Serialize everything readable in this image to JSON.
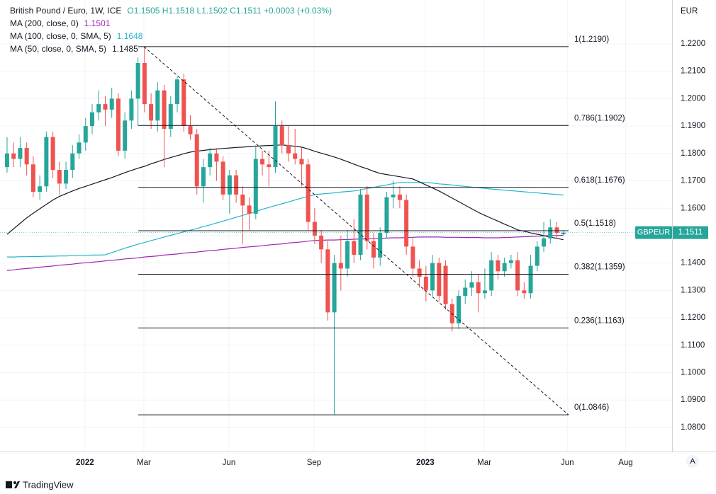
{
  "chart_data": {
    "type": "candlestick",
    "title": "British Pound / Euro, 1W, ICE",
    "ohlc_text": "O1.1505 H1.1518 L1.1502 C1.1511 +0.0003 (+0.03%)",
    "currency": "EUR",
    "symbol": "GBPEUR",
    "watermark": "TradingView",
    "scale_button": "A",
    "up_color": "#26a69a",
    "down_color": "#ef5350",
    "grid": true,
    "categories": [
      null,
      null,
      null,
      null,
      null,
      null,
      null,
      null,
      null,
      null,
      null,
      null,
      null,
      null,
      null,
      null,
      null,
      null,
      null,
      null,
      null,
      null,
      null,
      null,
      null,
      null,
      null,
      null,
      null,
      null,
      null,
      null,
      null,
      null,
      null,
      null,
      null,
      null,
      null,
      null,
      null,
      null,
      null,
      null,
      null,
      null,
      null,
      null,
      null,
      null,
      null,
      null,
      null,
      null,
      null,
      null,
      null,
      null,
      null,
      null,
      null,
      null,
      null,
      null,
      null,
      null,
      null,
      null,
      null,
      null,
      null,
      null,
      null,
      null,
      null,
      null,
      null,
      null,
      null,
      null,
      null,
      null,
      null,
      null,
      null,
      null
    ],
    "open": [
      1.175,
      1.18,
      1.178,
      1.182,
      1.176,
      1.166,
      1.168,
      1.186,
      1.174,
      1.169,
      1.174,
      1.18,
      1.184,
      1.19,
      1.195,
      1.198,
      1.196,
      1.2,
      1.181,
      1.192,
      1.2,
      1.213,
      1.198,
      1.192,
      1.203,
      1.189,
      1.198,
      1.207,
      1.19,
      1.187,
      1.168,
      1.175,
      1.18,
      1.177,
      1.165,
      1.172,
      1.165,
      1.161,
      1.158,
      1.178,
      1.176,
      1.175,
      1.19,
      1.183,
      1.18,
      1.178,
      1.176,
      1.155,
      1.15,
      1.145,
      1.122,
      1.14,
      1.138,
      1.148,
      1.143,
      1.165,
      1.148,
      1.142,
      1.151,
      1.164,
      1.165,
      1.163,
      1.146,
      1.138,
      1.135,
      1.13,
      1.14,
      1.139,
      1.125,
      1.118,
      1.128,
      1.131,
      1.133,
      1.129,
      1.13,
      1.141,
      1.137,
      1.14,
      1.141,
      1.13,
      1.129,
      1.139,
      1.146,
      1.149,
      1.153,
      1.1505
    ],
    "high": [
      1.186,
      1.184,
      1.186,
      1.184,
      1.179,
      1.172,
      1.188,
      1.188,
      1.177,
      1.177,
      1.183,
      1.187,
      1.193,
      1.198,
      1.203,
      1.201,
      1.204,
      1.202,
      1.195,
      1.203,
      1.215,
      1.219,
      1.202,
      1.206,
      1.205,
      1.201,
      1.208,
      1.209,
      1.194,
      1.189,
      1.178,
      1.182,
      1.182,
      1.179,
      1.174,
      1.174,
      1.168,
      1.164,
      1.183,
      1.181,
      1.181,
      1.199,
      1.192,
      1.19,
      1.189,
      1.182,
      1.178,
      1.16,
      1.152,
      1.148,
      1.143,
      1.15,
      1.152,
      1.156,
      1.167,
      1.168,
      1.151,
      1.153,
      1.166,
      1.17,
      1.168,
      1.165,
      1.149,
      1.141,
      1.139,
      1.143,
      1.142,
      1.141,
      1.127,
      1.13,
      1.134,
      1.137,
      1.136,
      1.138,
      1.144,
      1.143,
      1.142,
      1.143,
      1.144,
      1.133,
      1.143,
      1.148,
      1.155,
      1.156,
      1.155,
      1.1518
    ],
    "low": [
      1.173,
      1.175,
      1.175,
      1.172,
      1.164,
      1.163,
      1.166,
      1.171,
      1.165,
      1.167,
      1.171,
      1.178,
      1.181,
      1.187,
      1.192,
      1.19,
      1.193,
      1.179,
      1.178,
      1.189,
      1.19,
      1.195,
      1.189,
      1.188,
      1.175,
      1.186,
      1.195,
      1.188,
      1.185,
      1.165,
      1.162,
      1.172,
      1.17,
      1.163,
      1.158,
      1.162,
      1.147,
      1.152,
      1.156,
      1.172,
      1.168,
      1.173,
      1.18,
      1.177,
      1.176,
      1.168,
      1.152,
      1.147,
      1.14,
      1.119,
      1.0846,
      1.13,
      1.135,
      1.14,
      1.141,
      1.145,
      1.138,
      1.139,
      1.149,
      1.16,
      1.16,
      1.143,
      1.135,
      1.131,
      1.126,
      1.128,
      1.126,
      1.123,
      1.115,
      1.116,
      1.125,
      1.128,
      1.122,
      1.127,
      1.128,
      1.134,
      1.135,
      1.138,
      1.128,
      1.127,
      1.127,
      1.137,
      1.144,
      1.147,
      1.149,
      1.1502
    ],
    "close": [
      1.18,
      1.178,
      1.182,
      1.176,
      1.166,
      1.168,
      1.186,
      1.174,
      1.169,
      1.174,
      1.18,
      1.184,
      1.19,
      1.195,
      1.198,
      1.196,
      1.2,
      1.181,
      1.192,
      1.2,
      1.213,
      1.198,
      1.192,
      1.203,
      1.189,
      1.198,
      1.207,
      1.19,
      1.187,
      1.168,
      1.175,
      1.18,
      1.177,
      1.165,
      1.172,
      1.165,
      1.161,
      1.158,
      1.178,
      1.176,
      1.175,
      1.19,
      1.183,
      1.18,
      1.178,
      1.176,
      1.155,
      1.15,
      1.145,
      1.122,
      1.14,
      1.138,
      1.148,
      1.143,
      1.165,
      1.148,
      1.142,
      1.151,
      1.164,
      1.165,
      1.163,
      1.146,
      1.138,
      1.135,
      1.13,
      1.14,
      1.128,
      1.125,
      1.118,
      1.128,
      1.131,
      1.133,
      1.129,
      1.13,
      1.141,
      1.137,
      1.14,
      1.141,
      1.13,
      1.129,
      1.139,
      1.146,
      1.149,
      1.153,
      1.151,
      1.1511
    ],
    "series": [
      {
        "name": "MA (200, close, 0)",
        "color": "#9c27b0",
        "values": [
          1.1373,
          1.1375,
          1.1378,
          1.138,
          1.1382,
          1.1385,
          1.1387,
          1.1389,
          1.1392,
          1.1394,
          1.1396,
          1.1399,
          1.1401,
          1.1403,
          1.1405,
          1.1408,
          1.141,
          1.1412,
          1.1415,
          1.1417,
          1.1419,
          1.1422,
          1.1424,
          1.1426,
          1.1429,
          1.1431,
          1.1433,
          1.1436,
          1.1438,
          1.144,
          1.1443,
          1.1445,
          1.1447,
          1.145,
          1.1452,
          1.1454,
          1.1457,
          1.1459,
          1.1461,
          1.1463,
          1.1466,
          1.1468,
          1.147,
          1.1473,
          1.1475,
          1.1477,
          1.148,
          1.1482,
          1.1483,
          1.1484,
          1.1484,
          1.1485,
          1.1486,
          1.1487,
          1.1488,
          1.1488,
          1.1489,
          1.149,
          1.1491,
          1.1492,
          1.1492,
          1.1493,
          1.1494,
          1.1495,
          1.1495,
          1.1495,
          1.1495,
          1.1494,
          1.1494,
          1.1494,
          1.1493,
          1.1493,
          1.1493,
          1.1492,
          1.1492,
          1.1492,
          1.1493,
          1.1494,
          1.1495,
          1.1496,
          1.1497,
          1.1498,
          1.1499,
          1.15,
          1.15,
          1.1501
        ]
      },
      {
        "name": "MA (100, close, 0, SMA, 5)",
        "color": "#22b5c9",
        "values": [
          1.1422,
          1.1422,
          1.1423,
          1.1423,
          1.1424,
          1.1424,
          1.1425,
          1.1425,
          1.1426,
          1.1426,
          1.1427,
          1.1427,
          1.1428,
          1.1429,
          1.1429,
          1.143,
          1.1438,
          1.1446,
          1.1454,
          1.1461,
          1.1469,
          1.1475,
          1.1482,
          1.1488,
          1.1495,
          1.1501,
          1.1507,
          1.1514,
          1.152,
          1.1526,
          1.1533,
          1.1539,
          1.1546,
          1.1553,
          1.156,
          1.1567,
          1.1574,
          1.1581,
          1.1588,
          1.1596,
          1.1603,
          1.161,
          1.1616,
          1.1623,
          1.163,
          1.1637,
          1.1643,
          1.165,
          1.1652,
          1.1654,
          1.1656,
          1.1659,
          1.1661,
          1.1663,
          1.1667,
          1.1672,
          1.1676,
          1.1681,
          1.1685,
          1.169,
          1.1694,
          1.1694,
          1.1694,
          1.1694,
          1.1694,
          1.1692,
          1.1689,
          1.1687,
          1.1685,
          1.1682,
          1.168,
          1.1677,
          1.1675,
          1.1673,
          1.167,
          1.1668,
          1.1666,
          1.1664,
          1.1662,
          1.166,
          1.1658,
          1.1656,
          1.1654,
          1.1652,
          1.165,
          1.1648
        ]
      },
      {
        "name": "MA (50, close, 0, SMA, 5)",
        "color": "#131722",
        "values": [
          1.1505,
          1.1525,
          1.1545,
          1.1565,
          1.1582,
          1.1598,
          1.1614,
          1.163,
          1.1643,
          1.1653,
          1.1663,
          1.1672,
          1.168,
          1.1688,
          1.1696,
          1.1704,
          1.1712,
          1.1721,
          1.173,
          1.1738,
          1.1746,
          1.1753,
          1.1762,
          1.177,
          1.1778,
          1.1785,
          1.1792,
          1.1799,
          1.1805,
          1.1808,
          1.1811,
          1.1814,
          1.1816,
          1.1818,
          1.182,
          1.1822,
          1.1823,
          1.1825,
          1.1826,
          1.1828,
          1.1829,
          1.183,
          1.1831,
          1.1829,
          1.1826,
          1.1823,
          1.1816,
          1.1808,
          1.1801,
          1.1794,
          1.1787,
          1.1779,
          1.177,
          1.1761,
          1.1752,
          1.1744,
          1.1735,
          1.1727,
          1.1723,
          1.1719,
          1.1715,
          1.1711,
          1.1707,
          1.1696,
          1.1685,
          1.1674,
          1.1663,
          1.165,
          1.1637,
          1.1624,
          1.1611,
          1.1598,
          1.1585,
          1.1574,
          1.1563,
          1.1553,
          1.1542,
          1.1532,
          1.1521,
          1.1516,
          1.151,
          1.1505,
          1.15,
          1.1495,
          1.149,
          1.1485
        ]
      }
    ],
    "fib_levels": [
      {
        "value": 1.219,
        "label": "1(1.2190)"
      },
      {
        "value": 1.1902,
        "label": "0.786(1.1902)"
      },
      {
        "value": 1.1676,
        "label": "0.618(1.1676)"
      },
      {
        "value": 1.1518,
        "label": "0.5(1.1518)"
      },
      {
        "value": 1.1359,
        "label": "0.382(1.1359)"
      },
      {
        "value": 1.1163,
        "label": "0.236(1.1163)"
      },
      {
        "value": 1.0846,
        "label": "0(1.0846)"
      }
    ],
    "ylim": [
      1.0712,
      1.236
    ],
    "yticks": [
      {
        "value": 1.08,
        "label": "1.0800"
      },
      {
        "value": 1.09,
        "label": "1.0900"
      },
      {
        "value": 1.1,
        "label": "1.1000"
      },
      {
        "value": 1.11,
        "label": "1.1100"
      },
      {
        "value": 1.12,
        "label": "1.1200"
      },
      {
        "value": 1.13,
        "label": "1.1300"
      },
      {
        "value": 1.14,
        "label": "1.1400"
      },
      {
        "value": 1.15,
        "label": "1.1500"
      },
      {
        "value": 1.16,
        "label": "1.1600"
      },
      {
        "value": 1.17,
        "label": "1.1700"
      },
      {
        "value": 1.18,
        "label": "1.1800"
      },
      {
        "value": 1.19,
        "label": "1.1900"
      },
      {
        "value": 1.2,
        "label": "1.2000"
      },
      {
        "value": 1.21,
        "label": "1.2100"
      },
      {
        "value": 1.22,
        "label": "1.2200"
      }
    ],
    "xlim": [
      -1.08,
      101.6
    ],
    "xticks": [
      {
        "value": 11.9,
        "label": "2022"
      },
      {
        "value": 20.9,
        "label": "Mar"
      },
      {
        "value": 33.9,
        "label": "Jun"
      },
      {
        "value": 46.9,
        "label": "Sep"
      },
      {
        "value": 63.9,
        "label": "2023"
      },
      {
        "value": 72.9,
        "label": "Mar"
      },
      {
        "value": 85.6,
        "label": "Jun"
      },
      {
        "value": 94.5,
        "label": "Aug"
      }
    ]
  }
}
